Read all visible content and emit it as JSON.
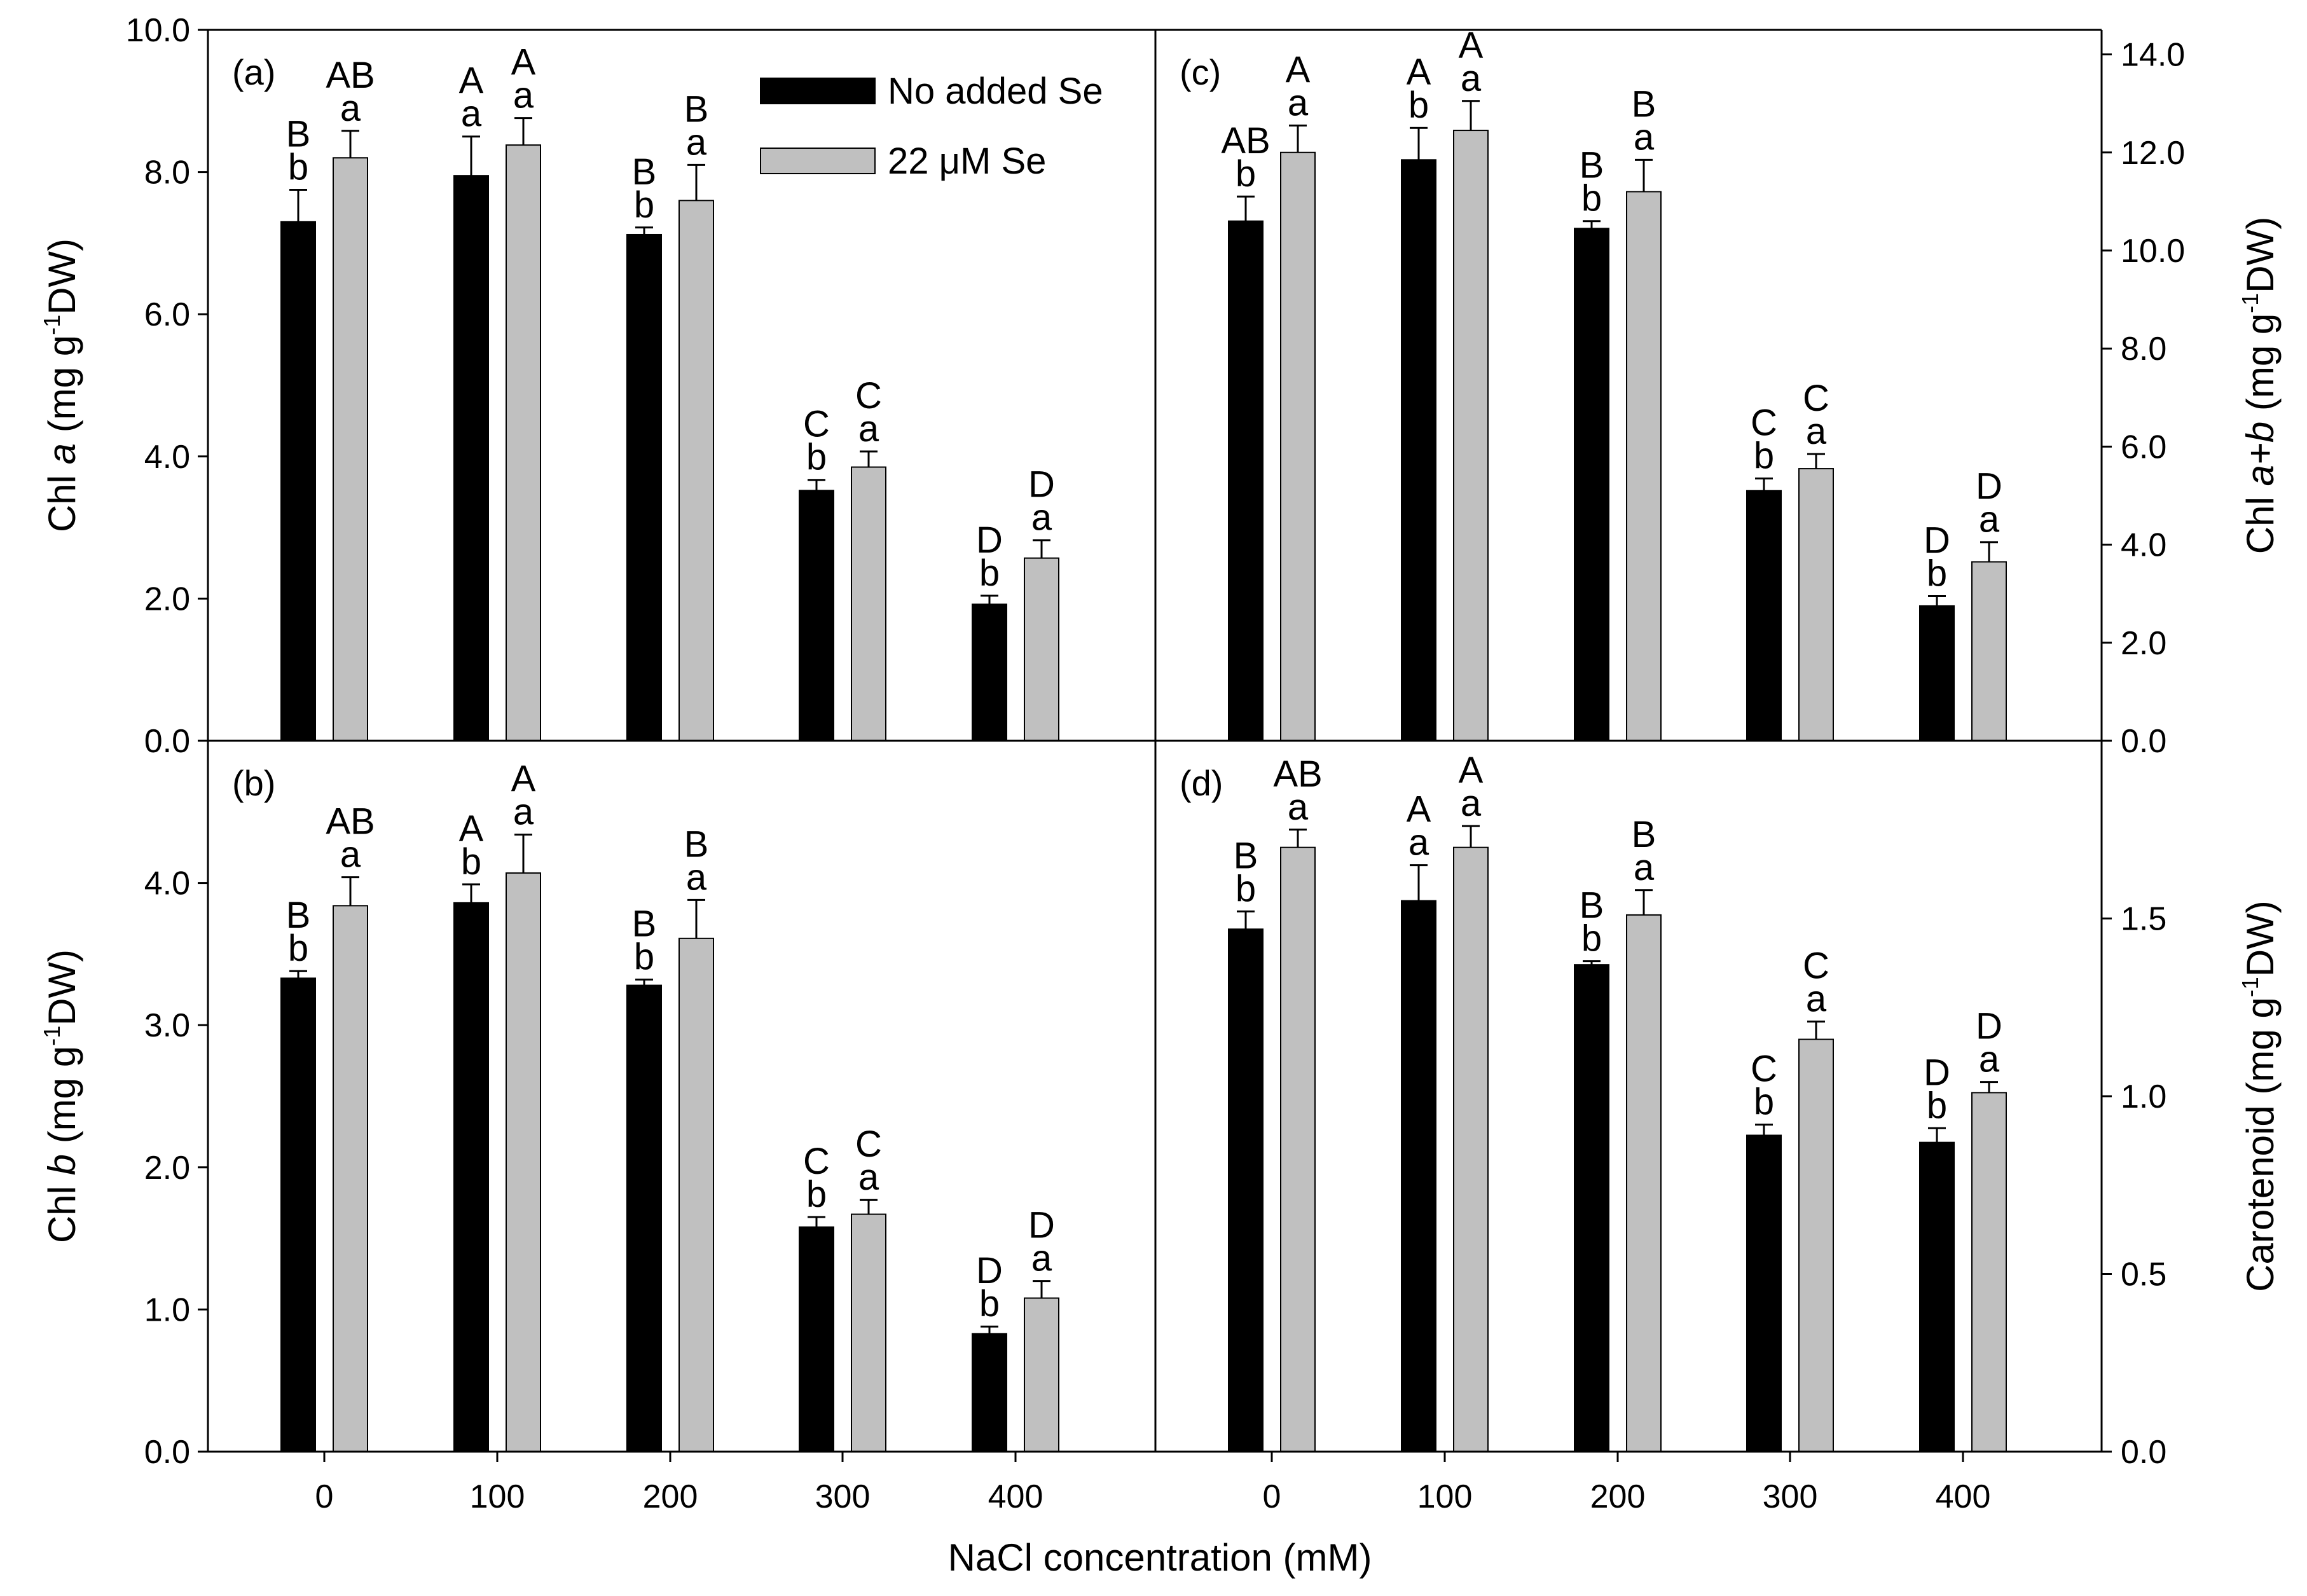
{
  "figure": {
    "xlabel": "NaCl concentration (mM)",
    "categories": [
      "0",
      "100",
      "200",
      "300",
      "400"
    ],
    "legend": [
      {
        "label": "No added Se",
        "color": "#000000"
      },
      {
        "label": "22 μM Se",
        "color": "#c0c0c0"
      }
    ],
    "colors": {
      "series_1": "#000000",
      "series_2": "#c0c0c0",
      "axis": "#000000"
    }
  },
  "chart_data": [
    {
      "panel": "(a)",
      "type": "bar",
      "categories": [
        "0",
        "100",
        "200",
        "300",
        "400"
      ],
      "ylabel_parts": [
        "Chl ",
        "a",
        " (mg g",
        "-1",
        "DW)"
      ],
      "ylim": [
        0,
        10
      ],
      "yticks": [
        "0.0",
        "2.0",
        "4.0",
        "6.0",
        "8.0",
        "10.0"
      ],
      "series": [
        {
          "name": "No added Se",
          "values": [
            7.3,
            7.95,
            7.12,
            3.52,
            1.92
          ],
          "errors": [
            0.45,
            0.55,
            0.1,
            0.15,
            0.12
          ]
        },
        {
          "name": "22 μM Se",
          "values": [
            8.2,
            8.38,
            7.6,
            3.85,
            2.57
          ],
          "errors": [
            0.38,
            0.38,
            0.5,
            0.22,
            0.25
          ]
        }
      ],
      "letters": [
        [
          "B",
          "b"
        ],
        [
          "AB",
          "a"
        ],
        [
          "A",
          "a"
        ],
        [
          "A",
          "a"
        ],
        [
          "B",
          "b"
        ],
        [
          "B",
          "a"
        ],
        [
          "C",
          "b"
        ],
        [
          "C",
          "a"
        ],
        [
          "D",
          "b"
        ],
        [
          "D",
          "a"
        ]
      ],
      "grid": false
    },
    {
      "panel": "(b)",
      "type": "bar",
      "categories": [
        "0",
        "100",
        "200",
        "300",
        "400"
      ],
      "ylabel_parts": [
        "Chl ",
        "b",
        " (mg g",
        "-1",
        "DW)"
      ],
      "ylim": [
        0,
        5
      ],
      "yticks": [
        "0.0",
        "1.0",
        "2.0",
        "3.0",
        "4.0"
      ],
      "series": [
        {
          "name": "No added Se",
          "values": [
            3.33,
            3.86,
            3.28,
            1.58,
            0.83
          ],
          "errors": [
            0.05,
            0.13,
            0.04,
            0.07,
            0.05
          ]
        },
        {
          "name": "22 μM Se",
          "values": [
            3.84,
            4.07,
            3.61,
            1.67,
            1.08
          ],
          "errors": [
            0.2,
            0.27,
            0.27,
            0.1,
            0.12
          ]
        }
      ],
      "letters": [
        [
          "B",
          "b"
        ],
        [
          "AB",
          "a"
        ],
        [
          "A",
          "b"
        ],
        [
          "A",
          "a"
        ],
        [
          "B",
          "b"
        ],
        [
          "B",
          "a"
        ],
        [
          "C",
          "b"
        ],
        [
          "C",
          "a"
        ],
        [
          "D",
          "b"
        ],
        [
          "D",
          "a"
        ]
      ],
      "grid": false
    },
    {
      "panel": "(c)",
      "type": "bar",
      "categories": [
        "0",
        "100",
        "200",
        "300",
        "400"
      ],
      "ylabel_parts": [
        "Chl ",
        "a+b",
        " (mg g",
        "-1",
        "DW)"
      ],
      "ylim": [
        0,
        14.5
      ],
      "yticks": [
        "0.0",
        "2.0",
        "4.0",
        "6.0",
        "8.0",
        "10.0",
        "12.0",
        "14.0"
      ],
      "series": [
        {
          "name": "No added Se",
          "values": [
            10.6,
            11.85,
            10.45,
            5.1,
            2.75
          ],
          "errors": [
            0.5,
            0.65,
            0.15,
            0.25,
            0.2
          ]
        },
        {
          "name": "22 μM Se",
          "values": [
            12.0,
            12.45,
            11.2,
            5.55,
            3.65
          ],
          "errors": [
            0.55,
            0.6,
            0.65,
            0.3,
            0.4
          ]
        }
      ],
      "letters": [
        [
          "AB",
          "b"
        ],
        [
          "A",
          "a"
        ],
        [
          "A",
          "b"
        ],
        [
          "A",
          "a"
        ],
        [
          "B",
          "b"
        ],
        [
          "B",
          "a"
        ],
        [
          "C",
          "b"
        ],
        [
          "C",
          "a"
        ],
        [
          "D",
          "b"
        ],
        [
          "D",
          "a"
        ]
      ],
      "grid": false
    },
    {
      "panel": "(d)",
      "type": "bar",
      "categories": [
        "0",
        "100",
        "200",
        "300",
        "400"
      ],
      "ylabel_parts": [
        "Carotenoid (mg g",
        "-1",
        "DW)"
      ],
      "ylim": [
        0,
        2.0
      ],
      "yticks": [
        "0.0",
        "0.5",
        "1.0",
        "1.5"
      ],
      "series": [
        {
          "name": "No added Se",
          "values": [
            1.47,
            1.55,
            1.37,
            0.89,
            0.87
          ],
          "errors": [
            0.05,
            0.1,
            0.01,
            0.03,
            0.04
          ]
        },
        {
          "name": "22 μM Se",
          "values": [
            1.7,
            1.7,
            1.51,
            1.16,
            1.01
          ],
          "errors": [
            0.05,
            0.06,
            0.07,
            0.05,
            0.03
          ]
        }
      ],
      "letters": [
        [
          "B",
          "b"
        ],
        [
          "AB",
          "a"
        ],
        [
          "A",
          "a"
        ],
        [
          "A",
          "a"
        ],
        [
          "B",
          "b"
        ],
        [
          "B",
          "a"
        ],
        [
          "C",
          "b"
        ],
        [
          "C",
          "a"
        ],
        [
          "D",
          "b"
        ],
        [
          "D",
          "a"
        ]
      ],
      "grid": false
    }
  ]
}
